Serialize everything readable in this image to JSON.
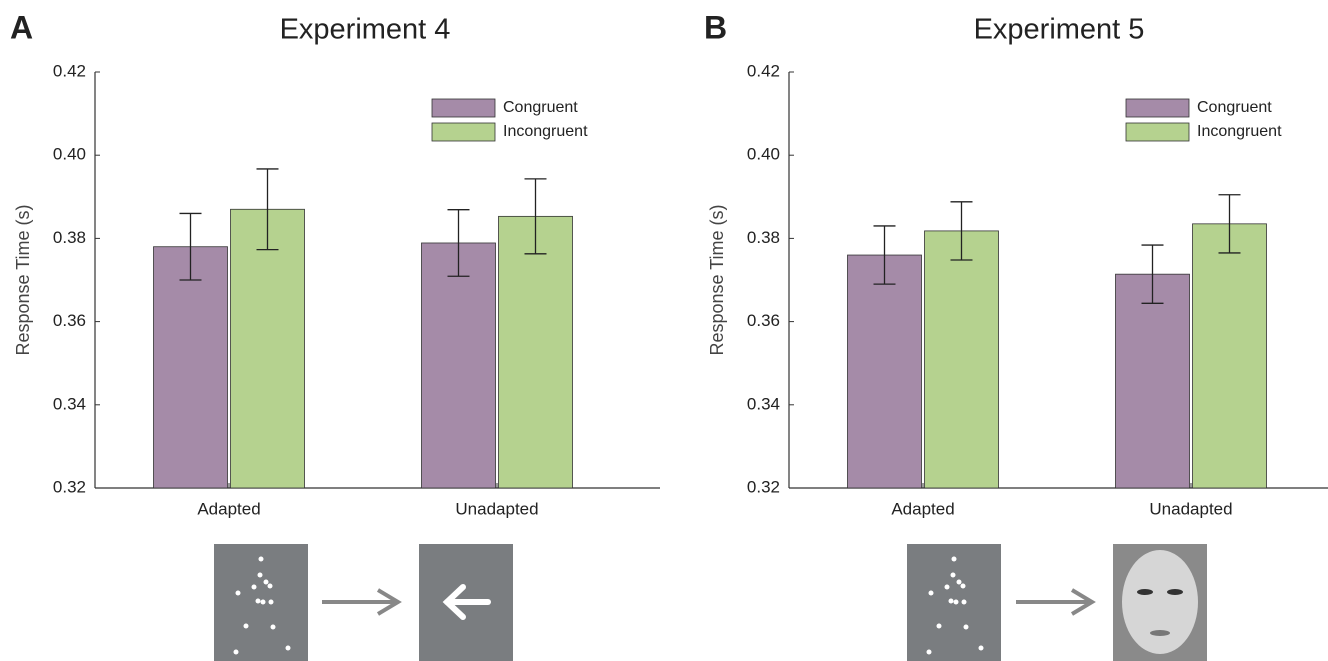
{
  "chart_data": [
    {
      "type": "bar",
      "panel_label": "A",
      "title": "Experiment 4",
      "y_label": "Response Time (s)",
      "categories": [
        "Adapted",
        "Unadapted"
      ],
      "series": [
        {
          "name": "Congruent",
          "color": "#a58ba8",
          "values": [
            0.378,
            0.3789
          ],
          "errors": [
            0.008,
            0.008
          ]
        },
        {
          "name": "Incongruent",
          "color": "#b5d28f",
          "values": [
            0.387,
            0.3853
          ],
          "errors": [
            0.0097,
            0.009
          ]
        }
      ],
      "ylim": [
        0.32,
        0.42
      ],
      "yticks": [
        0.32,
        0.34,
        0.36,
        0.38,
        {
          "value": 0.4,
          "label": "0.40"
        },
        0.42
      ]
    },
    {
      "type": "bar",
      "panel_label": "B",
      "title": "Experiment 5",
      "y_label": "Response Time (s)",
      "categories": [
        "Adapted",
        "Unadapted"
      ],
      "series": [
        {
          "name": "Congruent",
          "color": "#a58ba8",
          "values": [
            0.376,
            0.3714
          ],
          "errors": [
            0.007,
            0.007
          ]
        },
        {
          "name": "Incongruent",
          "color": "#b5d28f",
          "values": [
            0.3818,
            0.3835
          ],
          "errors": [
            0.007,
            0.007
          ]
        }
      ],
      "ylim": [
        0.32,
        0.42
      ],
      "yticks": [
        0.32,
        0.34,
        0.36,
        0.38,
        {
          "value": 0.4,
          "label": "0.40"
        },
        0.42
      ]
    }
  ]
}
